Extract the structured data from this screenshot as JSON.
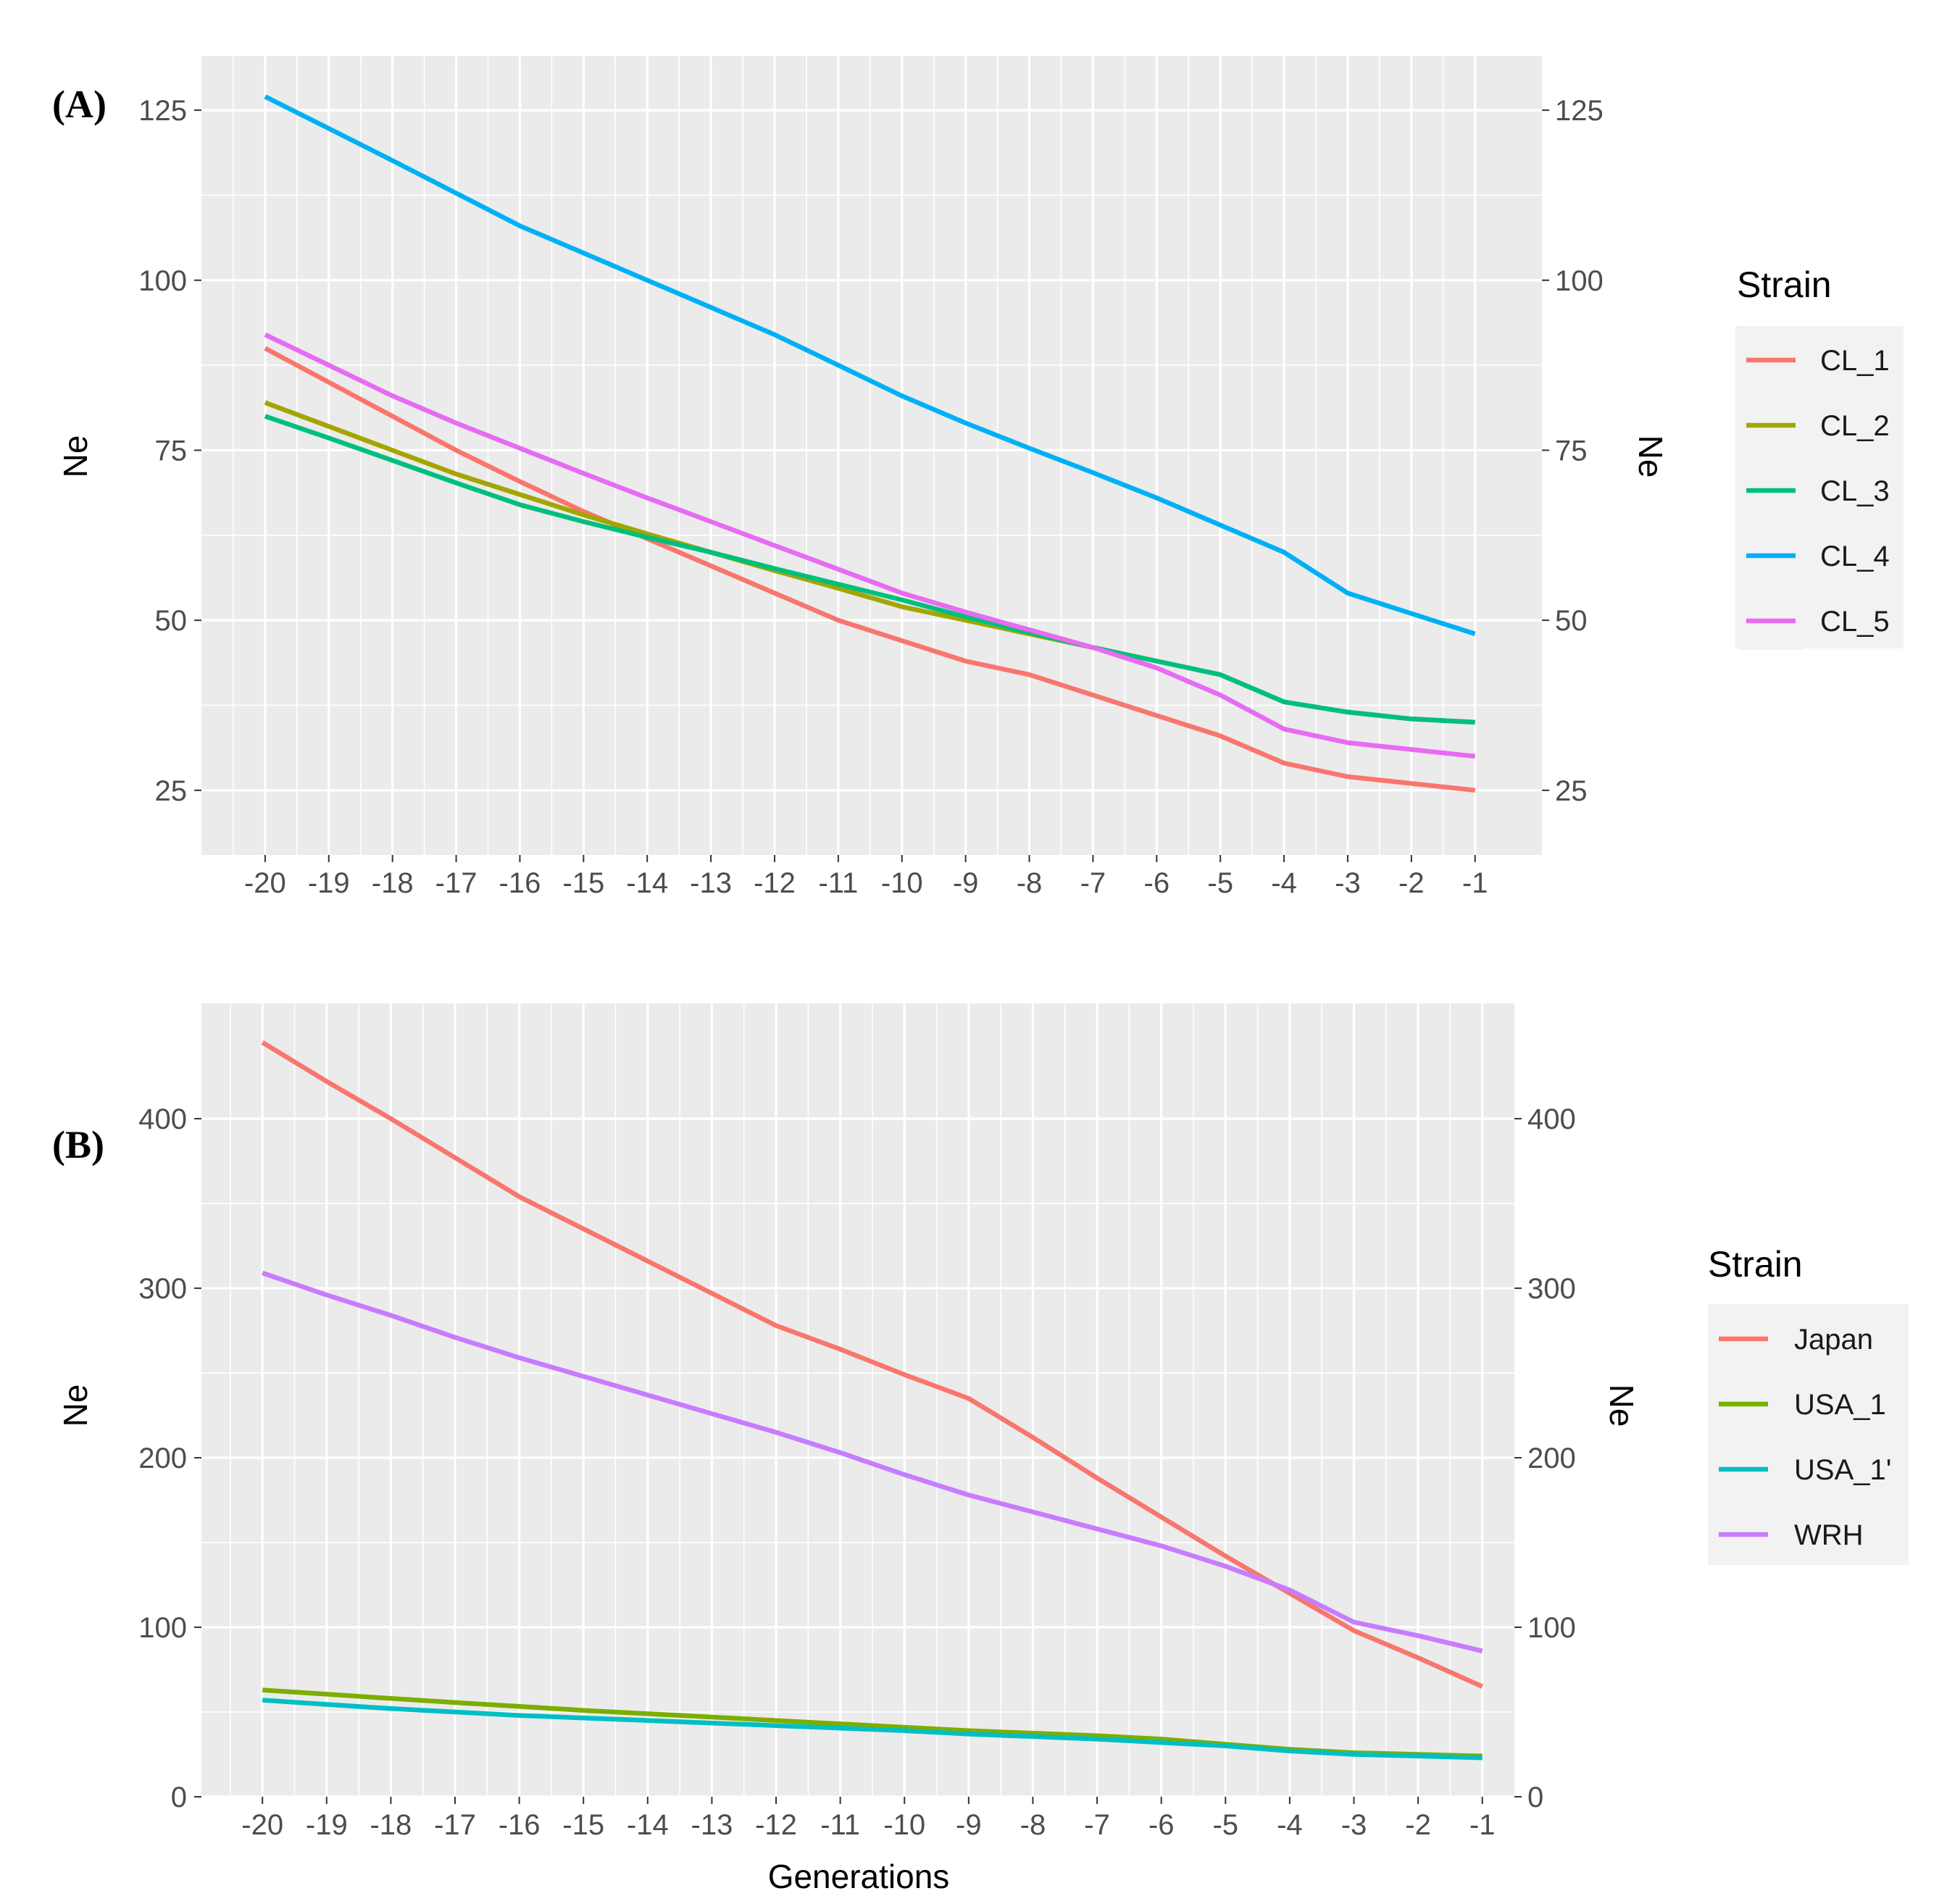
{
  "figure": {
    "xlabel": "Generations"
  },
  "chart_data": [
    {
      "type": "line",
      "panel_label": "(A)",
      "title": "",
      "xlabel": "",
      "ylabel": "Ne",
      "ylabel_right": "Ne",
      "x": [
        -20,
        -19,
        -18,
        -17,
        -16,
        -15,
        -14,
        -13,
        -12,
        -11,
        -10,
        -9,
        -8,
        -7,
        -6,
        -5,
        -4,
        -3,
        -2,
        -1
      ],
      "x_tick_labels": [
        "-20",
        "-19",
        "-18",
        "-17",
        "-16",
        "-15",
        "-14",
        "-13",
        "-12",
        "-11",
        "-10",
        "-9",
        "-8",
        "-7",
        "-6",
        "-5",
        "-4",
        "-3",
        "-2",
        "-1"
      ],
      "xlim": [
        -21,
        0.05
      ],
      "ylim": [
        15.5,
        133
      ],
      "y_ticks": [
        25,
        50,
        75,
        100,
        125
      ],
      "y_tick_labels": [
        "25",
        "50",
        "75",
        "100",
        "125"
      ],
      "grid": true,
      "legend": {
        "title": "Strain",
        "position": "right"
      },
      "series": [
        {
          "name": "CL_1",
          "color": "#F8766D",
          "values": [
            90,
            85,
            80,
            75,
            70.4,
            66,
            62,
            58,
            54,
            50,
            47,
            44,
            42,
            39,
            36,
            33,
            29,
            27,
            26,
            25
          ]
        },
        {
          "name": "CL_2",
          "color": "#A3A500",
          "values": [
            82,
            78.5,
            75,
            71.5,
            68.5,
            65.5,
            62.7,
            60,
            57.3,
            54.7,
            52,
            50,
            48,
            46,
            44,
            42,
            38,
            36.5,
            35.5,
            35
          ]
        },
        {
          "name": "CL_3",
          "color": "#00BF7D",
          "values": [
            80,
            76.8,
            73.5,
            70.2,
            67,
            64.5,
            62.2,
            60,
            57.6,
            55.3,
            53,
            50.5,
            48.2,
            46,
            44,
            42,
            38,
            36.5,
            35.5,
            35
          ]
        },
        {
          "name": "CL_4",
          "color": "#00B0F6",
          "values": [
            127,
            122.3,
            117.6,
            112.8,
            108,
            104,
            100,
            96,
            92,
            87.5,
            83,
            79,
            75.3,
            71.7,
            68,
            64,
            60,
            54,
            51,
            48
          ]
        },
        {
          "name": "CL_5",
          "color": "#E76BF3",
          "values": [
            92,
            87.5,
            83,
            79,
            75.3,
            71.6,
            68,
            64.5,
            61,
            57.5,
            54,
            51.2,
            48.6,
            46,
            43,
            39,
            34,
            32,
            31,
            30
          ]
        }
      ]
    },
    {
      "type": "line",
      "panel_label": "(B)",
      "title": "",
      "xlabel": "Generations",
      "ylabel": "Ne",
      "ylabel_right": "Ne",
      "x": [
        -20,
        -19,
        -18,
        -17,
        -16,
        -15,
        -14,
        -13,
        -12,
        -11,
        -10,
        -9,
        -8,
        -7,
        -6,
        -5,
        -4,
        -3,
        -2,
        -1
      ],
      "x_tick_labels": [
        "-20",
        "-19",
        "-18",
        "-17",
        "-16",
        "-15",
        "-14",
        "-13",
        "-12",
        "-11",
        "-10",
        "-9",
        "-8",
        "-7",
        "-6",
        "-5",
        "-4",
        "-3",
        "-2",
        "-1"
      ],
      "xlim": [
        -20.95,
        -0.5
      ],
      "ylim": [
        0,
        468
      ],
      "y_ticks": [
        0,
        100,
        200,
        300,
        400
      ],
      "y_tick_labels": [
        "0",
        "100",
        "200",
        "300",
        "400"
      ],
      "grid": true,
      "legend": {
        "title": "Strain",
        "position": "right"
      },
      "series": [
        {
          "name": "Japan",
          "color": "#F8766D",
          "values": [
            445,
            422,
            400,
            377,
            354,
            335,
            316,
            297,
            278,
            264,
            249,
            235,
            212,
            188,
            165,
            142,
            120,
            98,
            82,
            65
          ]
        },
        {
          "name": "USA_1",
          "color": "#7CAE00",
          "values": [
            63,
            60.5,
            58,
            55.6,
            53.3,
            51,
            49,
            47,
            45,
            43,
            41,
            39,
            37.5,
            36,
            34,
            31,
            28,
            26,
            25,
            24
          ]
        },
        {
          "name": "USA_1'",
          "color": "#00BFC4",
          "values": [
            57,
            54.5,
            52,
            50,
            48,
            46.5,
            45,
            43.5,
            42,
            40.5,
            39,
            37,
            35.5,
            34,
            32,
            30,
            27,
            25,
            24,
            23
          ]
        },
        {
          "name": "WRH",
          "color": "#C77CFF",
          "values": [
            309,
            296,
            284,
            271,
            259,
            248,
            237,
            226,
            215,
            203,
            190,
            178,
            168,
            158,
            148,
            136,
            122,
            103,
            95,
            86
          ]
        }
      ]
    }
  ]
}
